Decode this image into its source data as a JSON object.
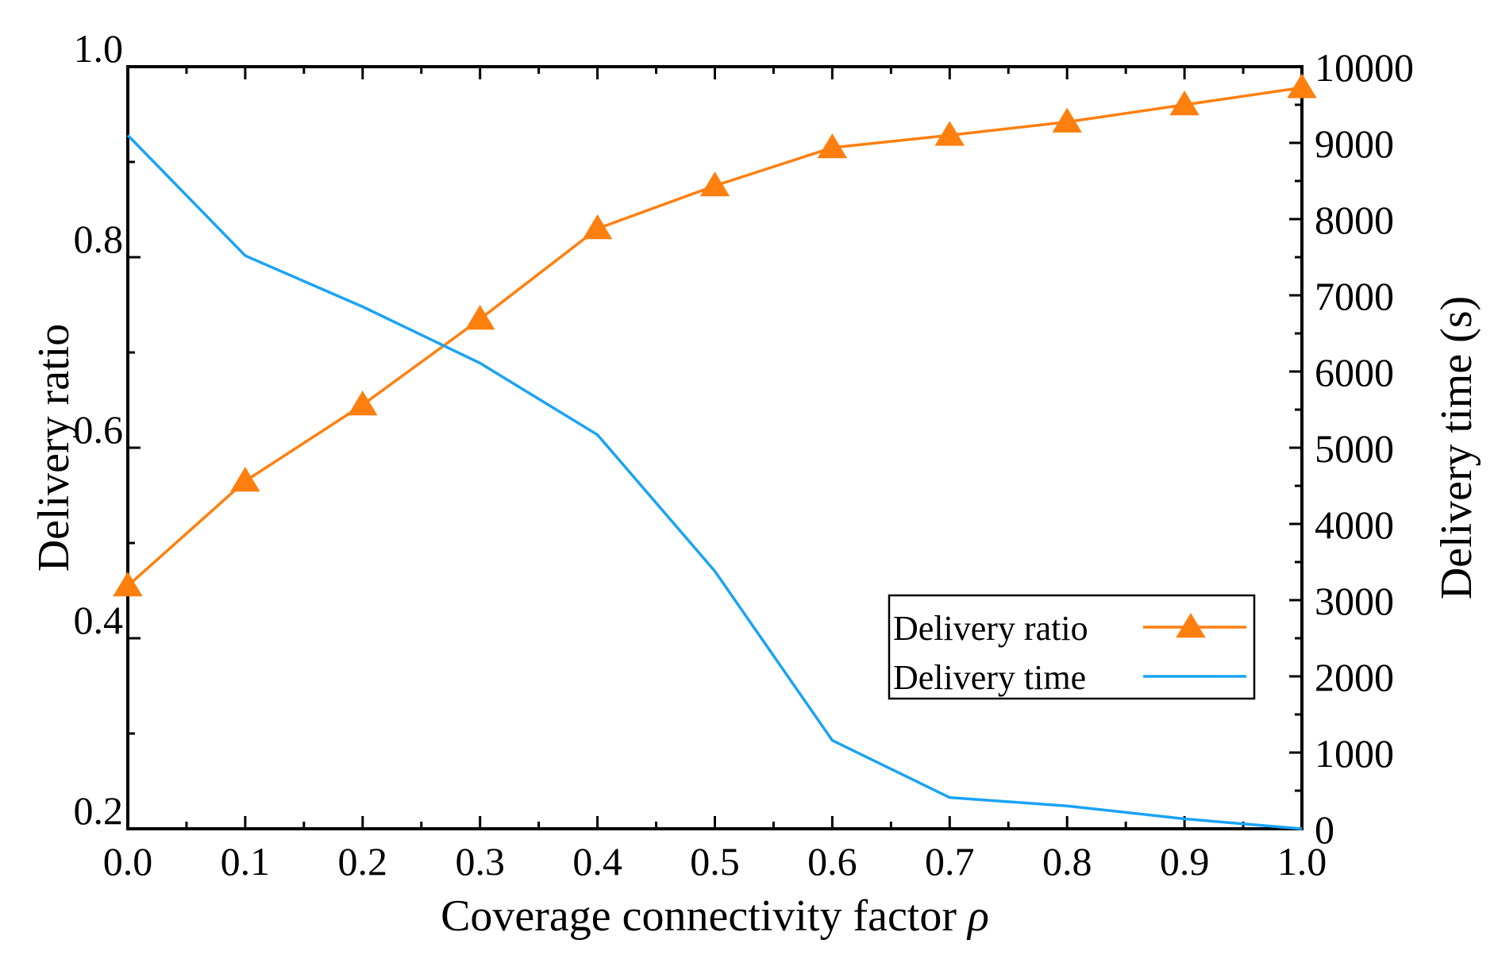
{
  "chart_data": {
    "type": "line",
    "title": "",
    "xlabel": "Coverage connectivity factor",
    "xlabel_symbol": "ρ",
    "ylabel_left": "Delivery ratio",
    "ylabel_right": "Delivery time (s)",
    "x": [
      0.0,
      0.1,
      0.2,
      0.3,
      0.4,
      0.5,
      0.6,
      0.7,
      0.8,
      0.9,
      1.0
    ],
    "x_tick_labels": [
      "0.0",
      "0.1",
      "0.2",
      "0.3",
      "0.4",
      "0.5",
      "0.6",
      "0.7",
      "0.8",
      "0.9",
      "1.0"
    ],
    "xlim": [
      0.0,
      1.0
    ],
    "ylim_left": [
      0.2,
      1.0
    ],
    "ylim_right": [
      0,
      10000
    ],
    "y_left_tick_labels": [
      "0.2",
      "0.4",
      "0.6",
      "0.8",
      "1.0"
    ],
    "y_left_tick_values": [
      0.2,
      0.4,
      0.6,
      0.8,
      1.0
    ],
    "y_right_tick_labels": [
      "0",
      "1000",
      "2000",
      "3000",
      "4000",
      "5000",
      "6000",
      "7000",
      "8000",
      "9000",
      "10000"
    ],
    "y_right_tick_values": [
      0,
      1000,
      2000,
      3000,
      4000,
      5000,
      6000,
      7000,
      8000,
      9000,
      10000
    ],
    "grid": false,
    "legend_position": "lower-right",
    "series": [
      {
        "name": "Delivery ratio",
        "axis": "left",
        "marker": "triangle",
        "color": "#FF7F0E",
        "values": [
          0.455,
          0.565,
          0.645,
          0.735,
          0.83,
          0.875,
          0.915,
          0.928,
          0.942,
          0.96,
          0.978
        ]
      },
      {
        "name": "Delivery time",
        "axis": "right",
        "marker": "none",
        "color": "#1AA3F5",
        "values": [
          9100,
          7520,
          6850,
          6110,
          5170,
          3380,
          1160,
          410,
          300,
          130,
          0
        ]
      }
    ]
  }
}
